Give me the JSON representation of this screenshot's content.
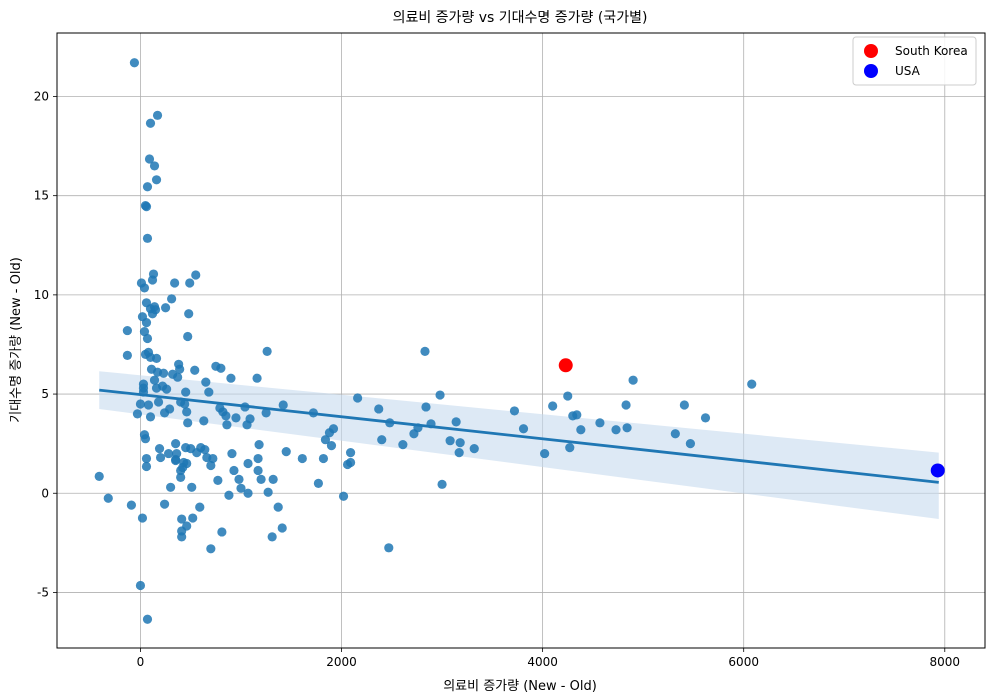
{
  "chart_data": {
    "type": "scatter",
    "title": "의료비 증가량 vs 기대수명 증가량 (국가별)",
    "xlabel": "의료비 증가량 (New - Old)",
    "ylabel": "기대수명 증가량 (New - Old)",
    "xlim": [
      -830,
      8400
    ],
    "ylim": [
      -7.8,
      23.2
    ],
    "xticks": [
      0,
      2000,
      4000,
      6000,
      8000
    ],
    "xtick_labels": [
      "0",
      "2000",
      "4000",
      "6000",
      "8000"
    ],
    "yticks": [
      -5,
      0,
      5,
      10,
      15,
      20
    ],
    "ytick_labels": [
      "-5",
      "0",
      "5",
      "10",
      "15",
      "20"
    ],
    "grid": true,
    "legend": {
      "position": "top-right",
      "entries": [
        {
          "label": "South Korea",
          "color": "#ff0000"
        },
        {
          "label": "USA",
          "color": "#0000ff"
        }
      ]
    },
    "colors": {
      "points": "#1f77b4",
      "regression": "#1f77b4",
      "band": "#c6dbef"
    },
    "regression": {
      "x": [
        -410,
        7940
      ],
      "y": [
        5.2,
        0.55
      ],
      "ci_upper": [
        6.15,
        2.05
      ],
      "ci_lower": [
        4.25,
        -1.3
      ]
    },
    "highlights": [
      {
        "name": "South Korea",
        "x": 4230,
        "y": 6.45,
        "color": "#ff0000"
      },
      {
        "name": "USA",
        "x": 7930,
        "y": 1.15,
        "color": "#0000ff"
      }
    ],
    "points": [
      [
        -410,
        0.85
      ],
      [
        -320,
        -0.25
      ],
      [
        -130,
        8.2
      ],
      [
        -130,
        6.95
      ],
      [
        -90,
        -0.6
      ],
      [
        -60,
        21.7
      ],
      [
        -30,
        4.0
      ],
      [
        0,
        4.5
      ],
      [
        0,
        -4.65
      ],
      [
        10,
        10.6
      ],
      [
        20,
        8.9
      ],
      [
        20,
        -1.25
      ],
      [
        30,
        5.3
      ],
      [
        30,
        5.1
      ],
      [
        30,
        5.5
      ],
      [
        40,
        8.15
      ],
      [
        40,
        2.95
      ],
      [
        40,
        10.35
      ],
      [
        50,
        7.0
      ],
      [
        50,
        14.5
      ],
      [
        50,
        2.75
      ],
      [
        60,
        8.6
      ],
      [
        60,
        14.45
      ],
      [
        60,
        9.6
      ],
      [
        60,
        1.35
      ],
      [
        60,
        1.75
      ],
      [
        70,
        15.45
      ],
      [
        70,
        12.85
      ],
      [
        70,
        7.8
      ],
      [
        70,
        -6.35
      ],
      [
        80,
        7.1
      ],
      [
        80,
        4.45
      ],
      [
        90,
        16.85
      ],
      [
        100,
        18.65
      ],
      [
        100,
        9.3
      ],
      [
        100,
        6.85
      ],
      [
        100,
        3.85
      ],
      [
        110,
        6.25
      ],
      [
        120,
        10.75
      ],
      [
        120,
        9.05
      ],
      [
        130,
        11.05
      ],
      [
        140,
        9.4
      ],
      [
        140,
        16.5
      ],
      [
        140,
        5.7
      ],
      [
        150,
        9.25
      ],
      [
        160,
        6.8
      ],
      [
        160,
        15.8
      ],
      [
        160,
        5.3
      ],
      [
        170,
        19.05
      ],
      [
        170,
        6.1
      ],
      [
        180,
        4.6
      ],
      [
        190,
        2.25
      ],
      [
        200,
        1.8
      ],
      [
        220,
        5.4
      ],
      [
        230,
        6.05
      ],
      [
        240,
        4.05
      ],
      [
        240,
        -0.55
      ],
      [
        250,
        9.35
      ],
      [
        260,
        5.25
      ],
      [
        280,
        2.0
      ],
      [
        290,
        4.25
      ],
      [
        300,
        0.3
      ],
      [
        310,
        9.8
      ],
      [
        320,
        6.0
      ],
      [
        340,
        10.6
      ],
      [
        350,
        2.5
      ],
      [
        350,
        1.65
      ],
      [
        350,
        1.7
      ],
      [
        360,
        2.0
      ],
      [
        370,
        5.85
      ],
      [
        380,
        6.5
      ],
      [
        390,
        6.25
      ],
      [
        400,
        4.6
      ],
      [
        400,
        1.15
      ],
      [
        400,
        0.8
      ],
      [
        410,
        -1.3
      ],
      [
        410,
        -1.9
      ],
      [
        410,
        -2.2
      ],
      [
        420,
        1.3
      ],
      [
        430,
        1.55
      ],
      [
        440,
        4.5
      ],
      [
        450,
        2.3
      ],
      [
        450,
        5.1
      ],
      [
        460,
        4.1
      ],
      [
        460,
        1.5
      ],
      [
        460,
        -1.65
      ],
      [
        470,
        3.55
      ],
      [
        470,
        7.9
      ],
      [
        480,
        9.05
      ],
      [
        490,
        10.6
      ],
      [
        500,
        2.25
      ],
      [
        510,
        0.3
      ],
      [
        520,
        -1.25
      ],
      [
        540,
        6.2
      ],
      [
        550,
        11.0
      ],
      [
        560,
        2.05
      ],
      [
        590,
        -0.7
      ],
      [
        600,
        2.3
      ],
      [
        630,
        3.65
      ],
      [
        640,
        2.2
      ],
      [
        650,
        5.6
      ],
      [
        660,
        1.8
      ],
      [
        680,
        5.1
      ],
      [
        700,
        1.4
      ],
      [
        700,
        -2.8
      ],
      [
        720,
        1.75
      ],
      [
        750,
        6.4
      ],
      [
        770,
        0.65
      ],
      [
        790,
        4.3
      ],
      [
        800,
        6.3
      ],
      [
        810,
        -1.95
      ],
      [
        820,
        4.1
      ],
      [
        850,
        3.9
      ],
      [
        860,
        3.45
      ],
      [
        880,
        -0.1
      ],
      [
        900,
        5.8
      ],
      [
        910,
        2.0
      ],
      [
        930,
        1.15
      ],
      [
        950,
        3.8
      ],
      [
        980,
        0.7
      ],
      [
        1000,
        0.25
      ],
      [
        1040,
        4.35
      ],
      [
        1060,
        3.45
      ],
      [
        1070,
        0.0
      ],
      [
        1070,
        1.5
      ],
      [
        1090,
        3.75
      ],
      [
        1160,
        5.8
      ],
      [
        1170,
        1.75
      ],
      [
        1170,
        1.15
      ],
      [
        1180,
        2.45
      ],
      [
        1200,
        0.7
      ],
      [
        1250,
        4.05
      ],
      [
        1260,
        7.15
      ],
      [
        1270,
        0.05
      ],
      [
        1310,
        -2.2
      ],
      [
        1320,
        0.7
      ],
      [
        1370,
        -0.7
      ],
      [
        1410,
        -1.75
      ],
      [
        1420,
        4.45
      ],
      [
        1450,
        2.1
      ],
      [
        1610,
        1.75
      ],
      [
        1720,
        4.05
      ],
      [
        1770,
        0.5
      ],
      [
        1820,
        1.75
      ],
      [
        1840,
        2.7
      ],
      [
        1880,
        3.05
      ],
      [
        1900,
        2.4
      ],
      [
        1920,
        3.25
      ],
      [
        2020,
        -0.15
      ],
      [
        2060,
        1.45
      ],
      [
        2090,
        1.55
      ],
      [
        2090,
        2.05
      ],
      [
        2160,
        4.8
      ],
      [
        2370,
        4.25
      ],
      [
        2400,
        2.7
      ],
      [
        2470,
        -2.75
      ],
      [
        2480,
        3.55
      ],
      [
        2610,
        2.45
      ],
      [
        2720,
        3.0
      ],
      [
        2760,
        3.3
      ],
      [
        2830,
        7.15
      ],
      [
        2840,
        4.35
      ],
      [
        2890,
        3.5
      ],
      [
        2980,
        4.95
      ],
      [
        3000,
        0.45
      ],
      [
        3080,
        2.65
      ],
      [
        3140,
        3.6
      ],
      [
        3170,
        2.05
      ],
      [
        3180,
        2.55
      ],
      [
        3320,
        2.25
      ],
      [
        3720,
        4.15
      ],
      [
        3810,
        3.25
      ],
      [
        4020,
        2.0
      ],
      [
        4100,
        4.4
      ],
      [
        4250,
        4.9
      ],
      [
        4270,
        2.3
      ],
      [
        4300,
        3.9
      ],
      [
        4340,
        3.95
      ],
      [
        4380,
        3.2
      ],
      [
        4570,
        3.55
      ],
      [
        4730,
        3.2
      ],
      [
        4830,
        4.45
      ],
      [
        4840,
        3.3
      ],
      [
        4900,
        5.7
      ],
      [
        5320,
        3.0
      ],
      [
        5410,
        4.45
      ],
      [
        5470,
        2.5
      ],
      [
        5620,
        3.8
      ],
      [
        6080,
        5.5
      ]
    ]
  }
}
